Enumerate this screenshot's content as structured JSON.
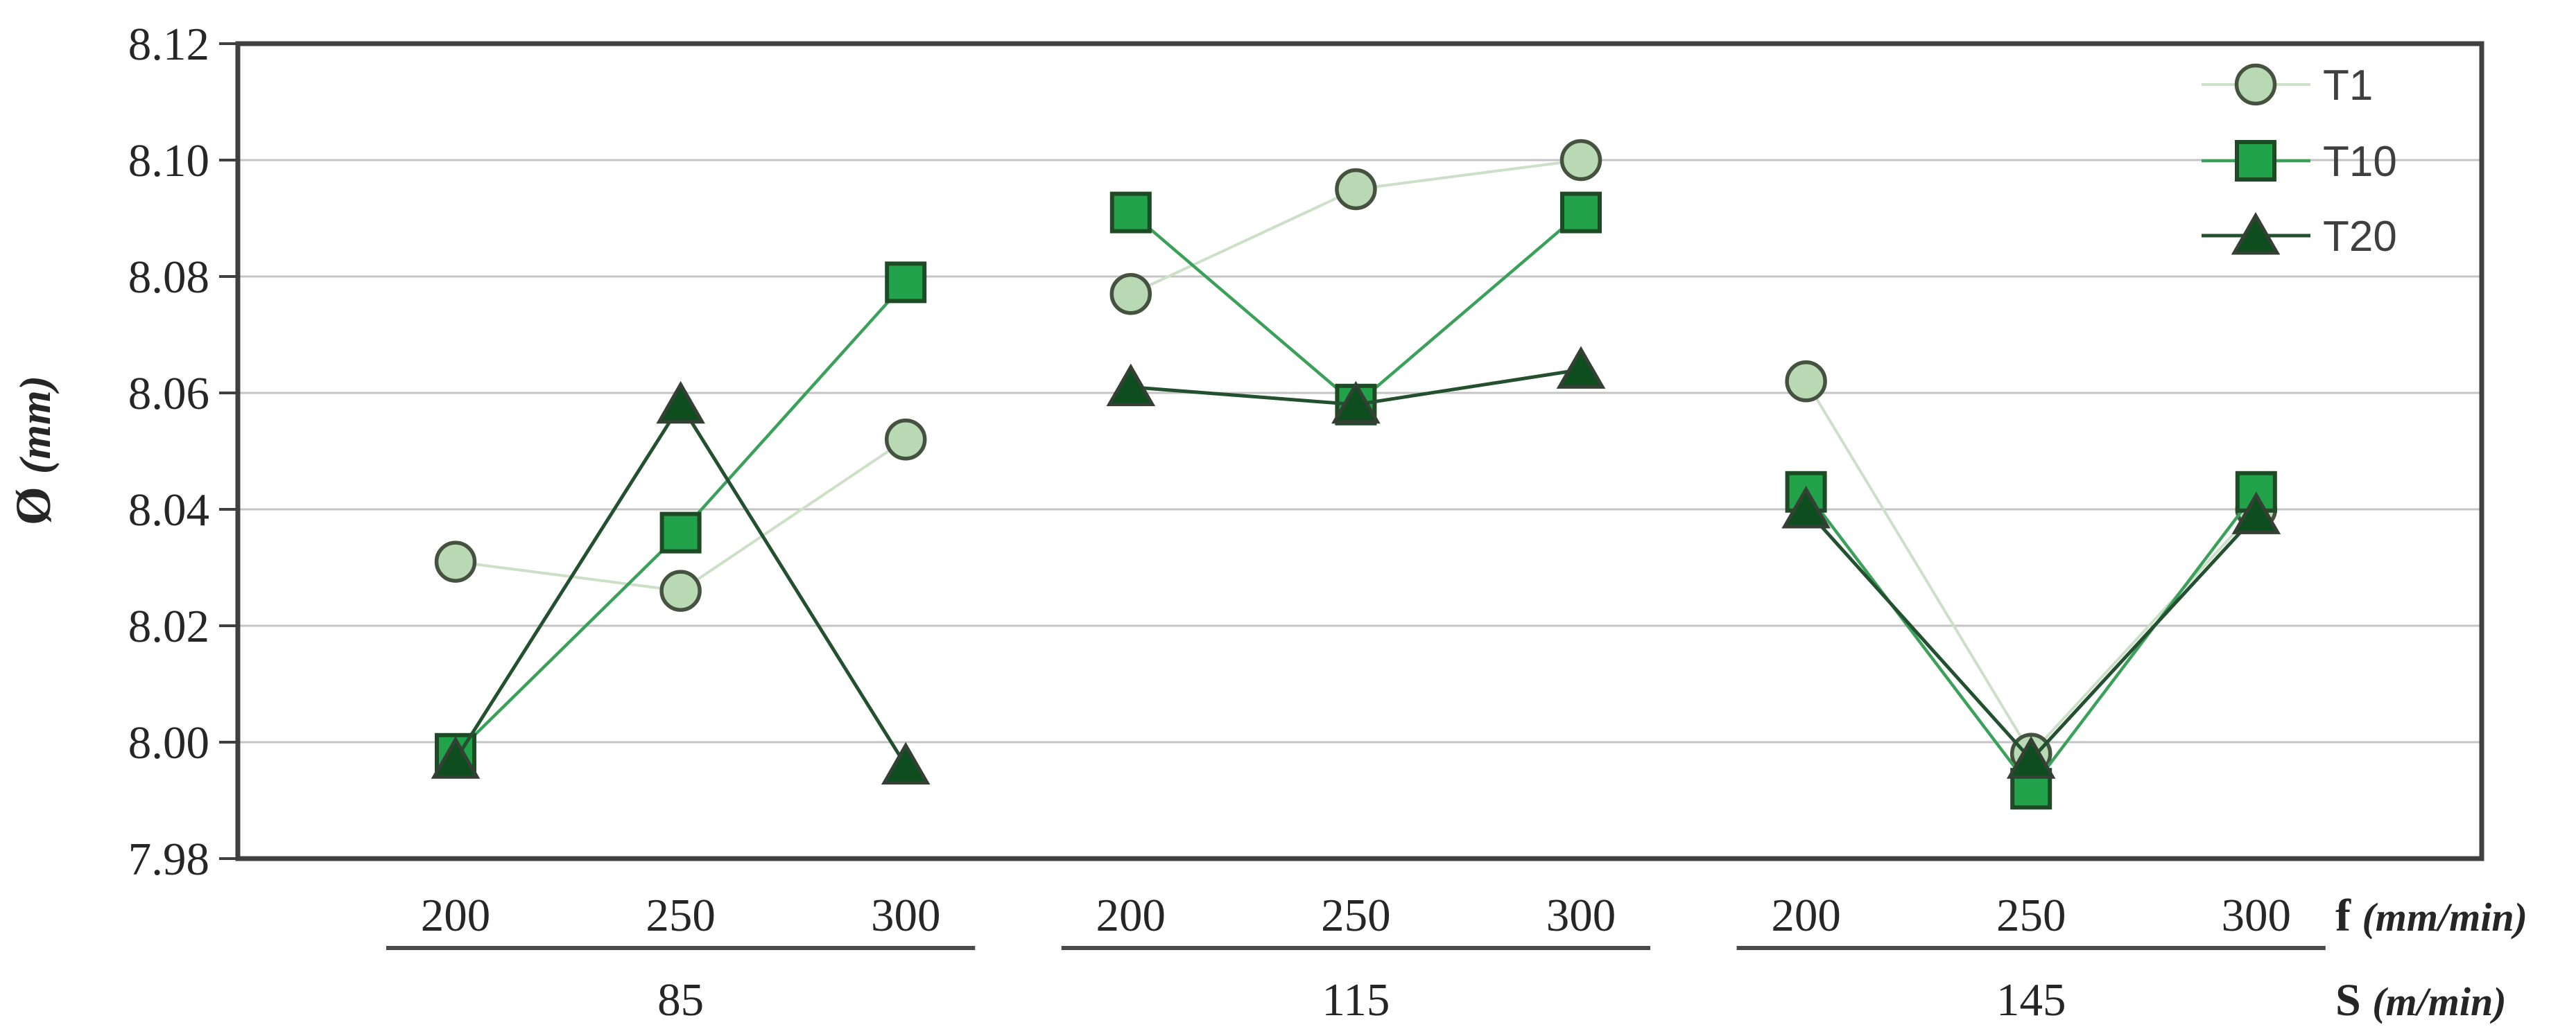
{
  "chart_data": {
    "type": "line",
    "title": "",
    "y_axis": {
      "symbol": "Ø",
      "units": "(mm)",
      "min": 7.98,
      "max": 8.12,
      "tick_step": 0.02,
      "tick_labels": [
        "8.12",
        "8.10",
        "8.08",
        "8.06",
        "8.04",
        "8.02",
        "8.00",
        "7.98"
      ]
    },
    "x_axis": {
      "level1_symbol": "f",
      "level1_units": "(mm/min)",
      "level2_symbol": "S",
      "level2_units": "(m/min)",
      "groups": [
        {
          "s_label": "85",
          "f_labels": [
            "200",
            "250",
            "300"
          ]
        },
        {
          "s_label": "115",
          "f_labels": [
            "200",
            "250",
            "300"
          ]
        },
        {
          "s_label": "145",
          "f_labels": [
            "200",
            "250",
            "300"
          ]
        }
      ]
    },
    "series": [
      {
        "name": "T1",
        "marker": "circle",
        "marker_fill": "#b9d9b4",
        "marker_stroke": "#45523f",
        "line_color": "#cce0c8",
        "line_width": 4,
        "values_by_group": [
          [
            8.031,
            8.026,
            8.052
          ],
          [
            8.077,
            8.095,
            8.1
          ],
          [
            8.062,
            7.998,
            8.04
          ]
        ]
      },
      {
        "name": "T10",
        "marker": "square",
        "marker_fill": "#22a24b",
        "marker_stroke": "#1e4a25",
        "line_color": "#3ba15a",
        "line_width": 4.5,
        "values_by_group": [
          [
            7.998,
            8.036,
            8.079
          ],
          [
            8.091,
            8.058,
            8.091
          ],
          [
            8.043,
            7.992,
            8.043
          ]
        ]
      },
      {
        "name": "T20",
        "marker": "triangle",
        "marker_fill": "#0d4d1e",
        "marker_stroke": "#344033",
        "line_color": "#23502e",
        "line_width": 5,
        "values_by_group": [
          [
            7.997,
            8.058,
            7.996
          ],
          [
            8.061,
            8.058,
            8.064
          ],
          [
            8.04,
            7.997,
            8.039
          ]
        ]
      }
    ],
    "legend": {
      "position": "top-right",
      "entries": [
        "T1",
        "T10",
        "T20"
      ]
    },
    "grid": true,
    "colors": {
      "background": "#ffffff",
      "gridline": "#c4c4c4",
      "border": "#404040",
      "tick": "#404040",
      "axis_text": "#262626",
      "legend_text": "#3f3f3f",
      "underline": "#4a4a4a"
    }
  }
}
